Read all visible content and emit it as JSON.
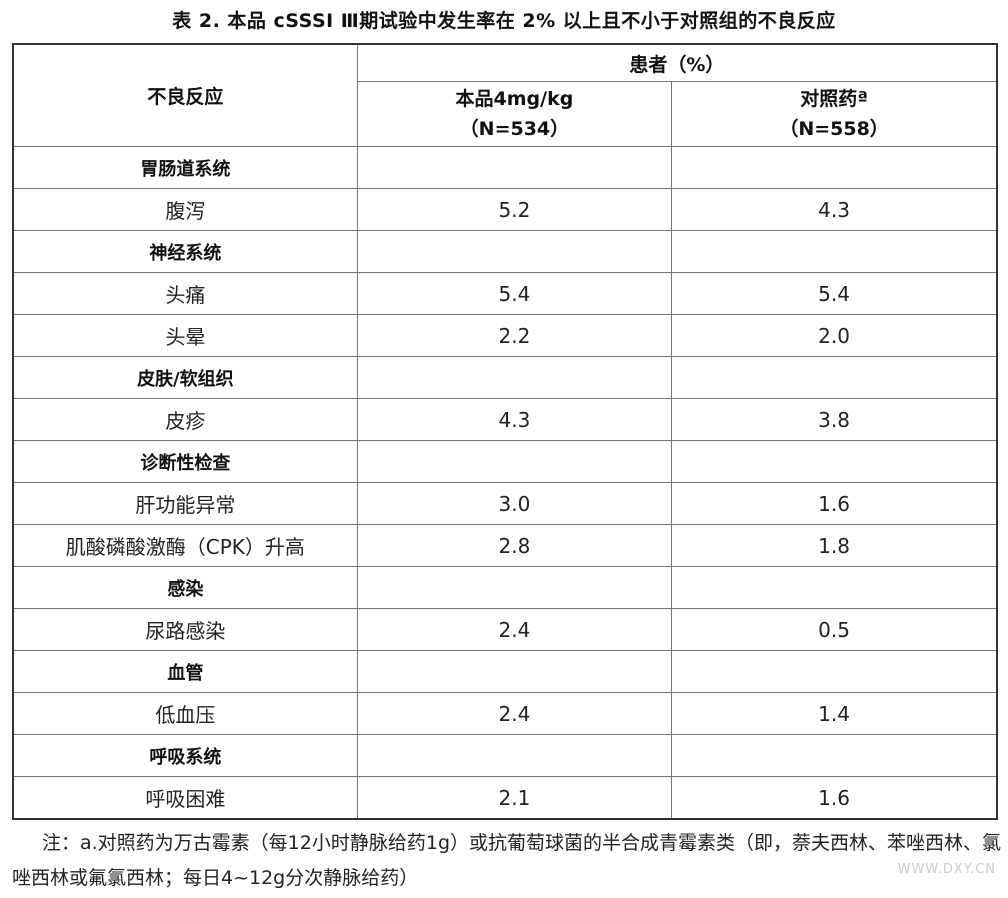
{
  "title": "表 2. 本品 cSSSI Ⅲ期试验中发生率在 2% 以上且不小于对照组的不良反应",
  "header": {
    "adverse_reaction": "不良反应",
    "patients": "患者（%）",
    "col_drug": "本品4mg/kg",
    "col_drug_n": "（N=534）",
    "col_control": "对照药ª",
    "col_control_n": "（N=558）"
  },
  "rows": [
    {
      "name": "胃肠道系统",
      "category": true,
      "drug": "",
      "control": ""
    },
    {
      "name": "腹泻",
      "drug": "5.2",
      "control": "4.3"
    },
    {
      "name": "神经系统",
      "category": true,
      "drug": "",
      "control": ""
    },
    {
      "name": "头痛",
      "drug": "5.4",
      "control": "5.4"
    },
    {
      "name": "头晕",
      "drug": "2.2",
      "control": "2.0"
    },
    {
      "name": "皮肤/软组织",
      "category": true,
      "drug": "",
      "control": ""
    },
    {
      "name": "皮疹",
      "drug": "4.3",
      "control": "3.8"
    },
    {
      "name": "诊断性检查",
      "category": true,
      "drug": "",
      "control": ""
    },
    {
      "name": "肝功能异常",
      "drug": "3.0",
      "control": "1.6"
    },
    {
      "name": "肌酸磷酸激酶（CPK）升高",
      "drug": "2.8",
      "control": "1.8"
    },
    {
      "name": "感染",
      "category": true,
      "drug": "",
      "control": ""
    },
    {
      "name": "尿路感染",
      "drug": "2.4",
      "control": "0.5"
    },
    {
      "name": "血管",
      "category": true,
      "drug": "",
      "control": ""
    },
    {
      "name": "低血压",
      "drug": "2.4",
      "control": "1.4"
    },
    {
      "name": "呼吸系统",
      "category": true,
      "drug": "",
      "control": ""
    },
    {
      "name": "呼吸困难",
      "drug": "2.1",
      "control": "1.6"
    }
  ],
  "note": "注：a.对照药为万古霉素（每12小时静脉给药1g）或抗葡萄球菌的半合成青霉素类（即，萘夫西林、苯唑西林、氯唑西林或氟氯西林；每日4~12g分次静脉给药）",
  "watermark": "WWW.DXY.CN"
}
